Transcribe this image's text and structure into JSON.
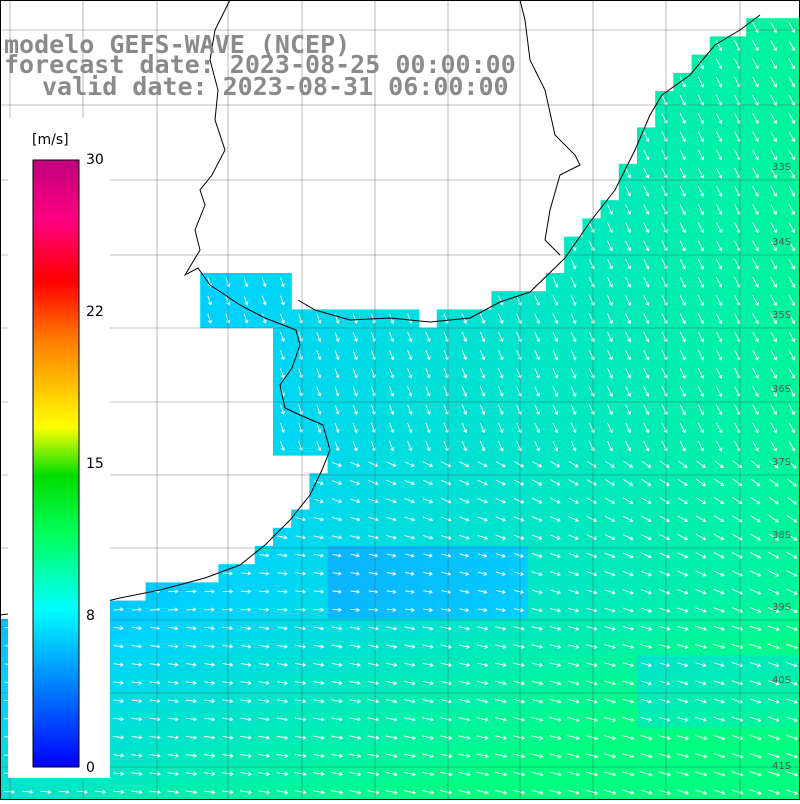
{
  "title": {
    "line1": "modelo GEFS-WAVE (NCEP)",
    "line2": "forecast date: 2023-08-25 00:00:00",
    "line3": "valid date: 2023-08-31 06:00:00"
  },
  "colorbar": {
    "unit": "[m/s]",
    "min": 0,
    "max": 30,
    "ticks": [
      {
        "value": 30,
        "label": "30"
      },
      {
        "value": 22,
        "label": "22"
      },
      {
        "value": 15,
        "label": "15"
      },
      {
        "value": 8,
        "label": "8"
      },
      {
        "value": 0,
        "label": "0"
      }
    ],
    "colors": [
      "#0000ff",
      "#00a0ff",
      "#00ffff",
      "#00ff00",
      "#ffff00",
      "#ff8000",
      "#ff0000",
      "#ff00a0",
      "#c00080"
    ]
  },
  "latitude_labels": [
    "33S",
    "34S",
    "35S",
    "36S",
    "37S",
    "38S",
    "39S",
    "40S",
    "41S"
  ],
  "field": {
    "name": "wind speed",
    "ocean_colors": {
      "weak": "#1e78ff",
      "mid": "#00d2ff",
      "strong": "#00ff80"
    }
  }
}
